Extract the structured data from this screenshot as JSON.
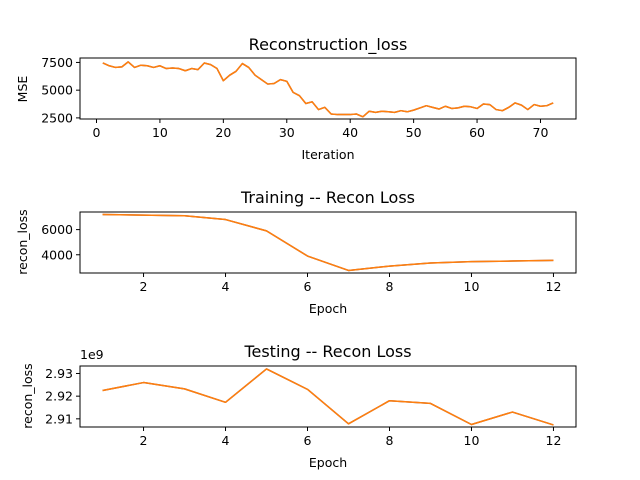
{
  "colors": {
    "series_a": "#8c564b",
    "series_b": "#ff7f0e"
  },
  "chart_data": [
    {
      "type": "line",
      "title": "Reconstruction_loss",
      "xlabel": "Iteration",
      "ylabel": "MSE",
      "xlim": [
        -2.6,
        75.6
      ],
      "ylim": [
        2400,
        7900
      ],
      "xticks": [
        0,
        10,
        20,
        30,
        40,
        50,
        60,
        70
      ],
      "yticks": [
        2500,
        5000,
        7500
      ],
      "ytick_labels": [
        "2500",
        "5000",
        "7500"
      ],
      "x": [
        1,
        2,
        3,
        4,
        5,
        6,
        7,
        8,
        9,
        10,
        11,
        12,
        13,
        14,
        15,
        16,
        17,
        18,
        19,
        20,
        21,
        22,
        23,
        24,
        25,
        26,
        27,
        28,
        29,
        30,
        31,
        32,
        33,
        34,
        35,
        36,
        37,
        38,
        39,
        40,
        41,
        42,
        43,
        44,
        45,
        46,
        47,
        48,
        49,
        50,
        51,
        52,
        53,
        54,
        55,
        56,
        57,
        58,
        59,
        60,
        61,
        62,
        63,
        64,
        65,
        66,
        67,
        68,
        69,
        70,
        71,
        72
      ],
      "series": [
        {
          "values": [
            7450,
            7200,
            7050,
            7100,
            7550,
            7050,
            7250,
            7200,
            7050,
            7200,
            6950,
            7000,
            6950,
            6750,
            6950,
            6850,
            7450,
            7300,
            6950,
            5850,
            6350,
            6700,
            7400,
            7050,
            6350,
            5950,
            5550,
            5600,
            5950,
            5800,
            4800,
            4500,
            3800,
            3950,
            3250,
            3450,
            2850,
            2800,
            2800,
            2800,
            2850,
            2600,
            3100,
            3000,
            3100,
            3050,
            3000,
            3150,
            3050,
            3200,
            3400,
            3600,
            3450,
            3300,
            3550,
            3350,
            3400,
            3550,
            3500,
            3350,
            3750,
            3700,
            3250,
            3150,
            3450,
            3850,
            3650,
            3250,
            3700,
            3550,
            3600,
            3850
          ]
        },
        {
          "values": [
            7450,
            7200,
            7050,
            7100,
            7550,
            7050,
            7250,
            7200,
            7050,
            7200,
            6950,
            7000,
            6950,
            6750,
            6950,
            6850,
            7450,
            7300,
            6950,
            5850,
            6350,
            6700,
            7400,
            7050,
            6350,
            5950,
            5550,
            5600,
            5950,
            5800,
            4800,
            4500,
            3800,
            3950,
            3250,
            3450,
            2850,
            2800,
            2800,
            2800,
            2850,
            2600,
            3100,
            3000,
            3100,
            3050,
            3000,
            3150,
            3050,
            3200,
            3400,
            3600,
            3450,
            3300,
            3550,
            3350,
            3400,
            3550,
            3500,
            3350,
            3750,
            3700,
            3250,
            3150,
            3450,
            3850,
            3650,
            3250,
            3700,
            3550,
            3600,
            3850
          ]
        }
      ]
    },
    {
      "type": "line",
      "title": "Training -- Recon Loss",
      "xlabel": "Epoch",
      "ylabel": "recon_loss",
      "xlim": [
        0.45,
        12.55
      ],
      "ylim": [
        2550,
        7400
      ],
      "xticks": [
        2,
        4,
        6,
        8,
        10,
        12
      ],
      "yticks": [
        4000,
        6000
      ],
      "ytick_labels": [
        "4000",
        "6000"
      ],
      "x": [
        1,
        2,
        3,
        4,
        5,
        6,
        7,
        8,
        9,
        10,
        11,
        12
      ],
      "series": [
        {
          "values": [
            7200,
            7150,
            7100,
            6800,
            5900,
            3900,
            2750,
            3100,
            3350,
            3450,
            3500,
            3550
          ]
        },
        {
          "values": [
            7200,
            7150,
            7100,
            6800,
            5900,
            3900,
            2750,
            3100,
            3350,
            3450,
            3500,
            3550
          ]
        }
      ]
    },
    {
      "type": "line",
      "title": "Testing -- Recon Loss",
      "xlabel": "Epoch",
      "ylabel": "recon_loss",
      "offset_label": "1e9",
      "xlim": [
        0.45,
        12.55
      ],
      "ylim": [
        2.9064,
        2.9333
      ],
      "xticks": [
        2,
        4,
        6,
        8,
        10,
        12
      ],
      "yticks": [
        2.91,
        2.92,
        2.93
      ],
      "ytick_labels": [
        "2.91",
        "2.92",
        "2.93"
      ],
      "x": [
        1,
        2,
        3,
        4,
        5,
        6,
        7,
        8,
        9,
        10,
        11,
        12
      ],
      "series": [
        {
          "values": [
            2.9225,
            2.926,
            2.9232,
            2.9173,
            2.932,
            2.923,
            2.9078,
            2.918,
            2.9168,
            2.9075,
            2.913,
            2.9073
          ]
        },
        {
          "values": [
            2.9225,
            2.926,
            2.9232,
            2.9173,
            2.932,
            2.923,
            2.9078,
            2.918,
            2.9168,
            2.9075,
            2.913,
            2.9073
          ]
        }
      ]
    }
  ]
}
